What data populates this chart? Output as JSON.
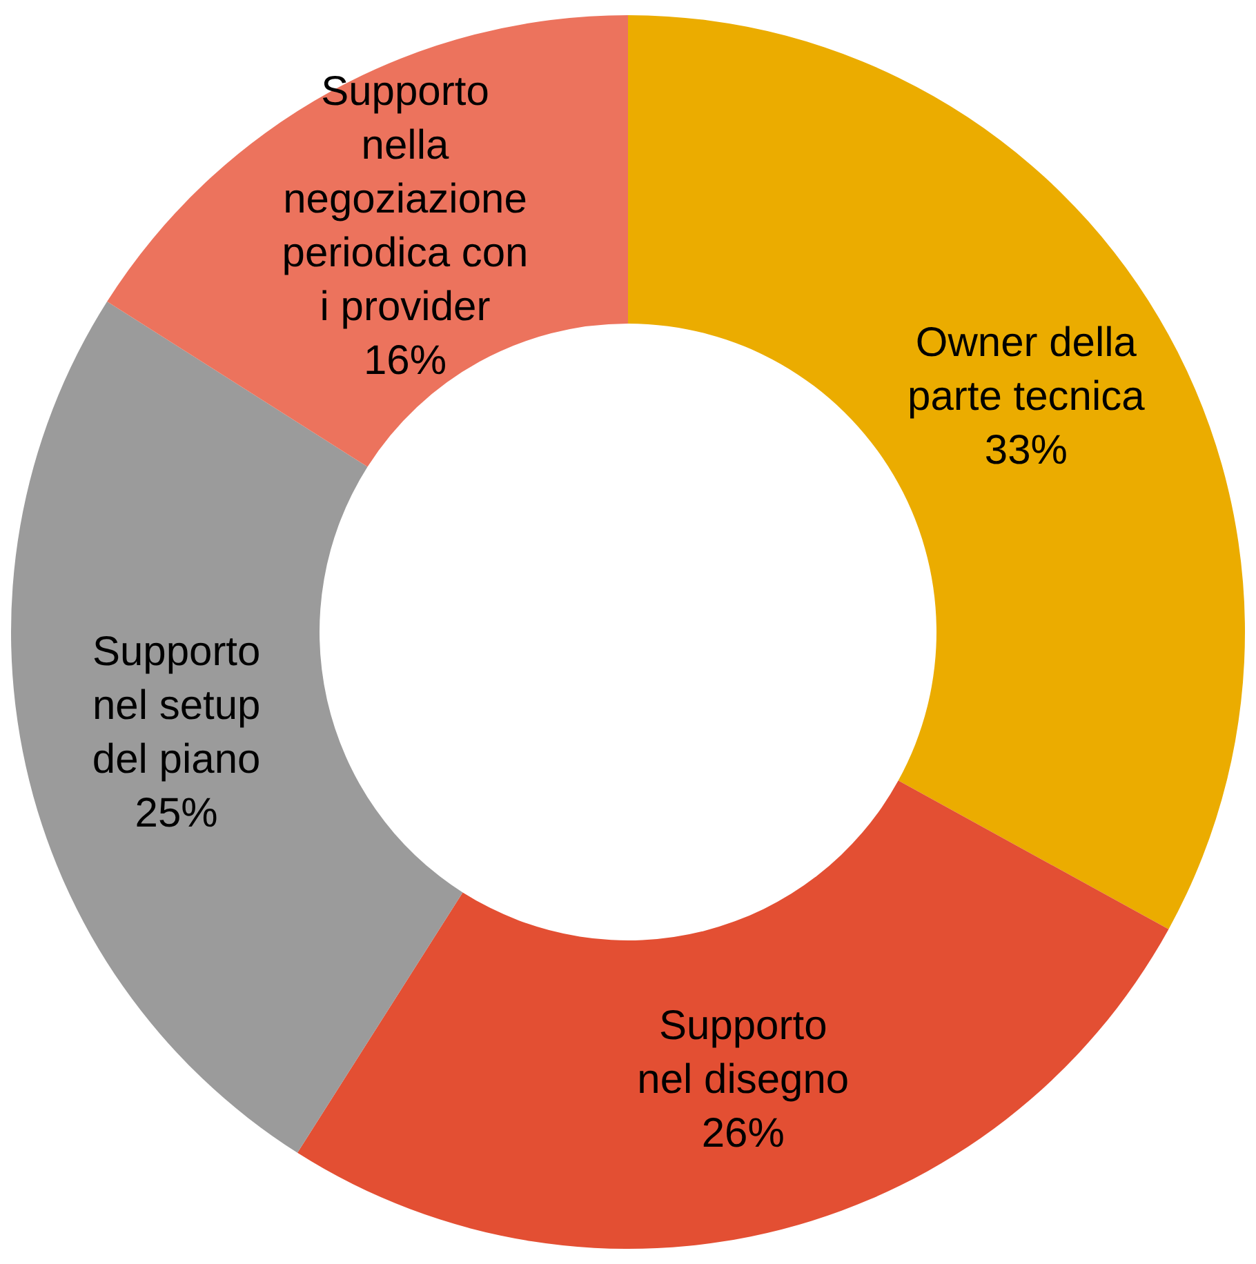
{
  "chart_data": {
    "type": "donut",
    "categories": [
      "Owner della\nparte tecnica",
      "Supporto\nnel disegno",
      "Supporto\nnel setup\ndel piano",
      "Supporto\nnella\nnegoziazione\nperiodica con\ni provider"
    ],
    "values": [
      33,
      26,
      25,
      16
    ],
    "colors": [
      "#ebac00",
      "#e34f33",
      "#9b9b9b",
      "#ec735d"
    ],
    "value_labels": [
      "33%",
      "26%",
      "25%",
      "16%"
    ],
    "legend": false
  }
}
